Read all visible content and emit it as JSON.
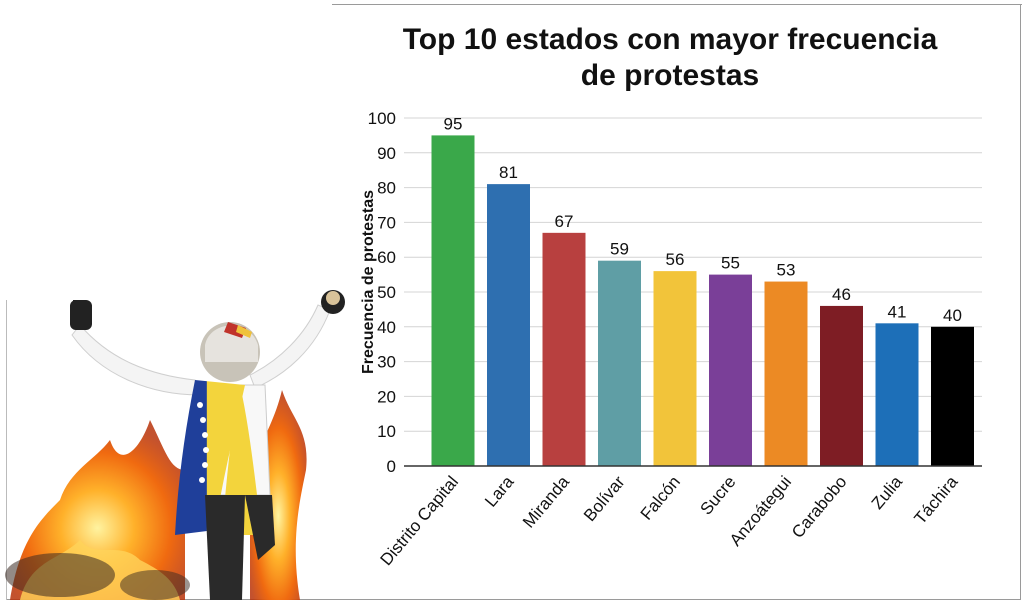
{
  "chart_data": {
    "type": "bar",
    "title_lines": [
      "Top 10 estados con mayor frecuencia",
      "de protestas"
    ],
    "xlabel": "",
    "ylabel": "Frecuencia de protestas",
    "ylim": [
      0,
      100
    ],
    "yticks": [
      0,
      10,
      20,
      30,
      40,
      50,
      60,
      70,
      80,
      90,
      100
    ],
    "grid": true,
    "categories": [
      "Distrito Capital",
      "Lara",
      "Miranda",
      "Bolívar",
      "Falcón",
      "Sucre",
      "Anzoátegui",
      "Carabobo",
      "Zulia",
      "Táchira"
    ],
    "values": [
      95,
      81,
      67,
      59,
      56,
      55,
      53,
      46,
      41,
      40
    ],
    "colors": [
      "#3aa84a",
      "#2e6fb0",
      "#b8403f",
      "#5f9ea5",
      "#f2c43a",
      "#7a3f98",
      "#ec8a24",
      "#7e1d24",
      "#1d6fb8",
      "#000000"
    ]
  },
  "photo": {
    "subject": "protester-with-venezuelan-flag-and-fire"
  }
}
